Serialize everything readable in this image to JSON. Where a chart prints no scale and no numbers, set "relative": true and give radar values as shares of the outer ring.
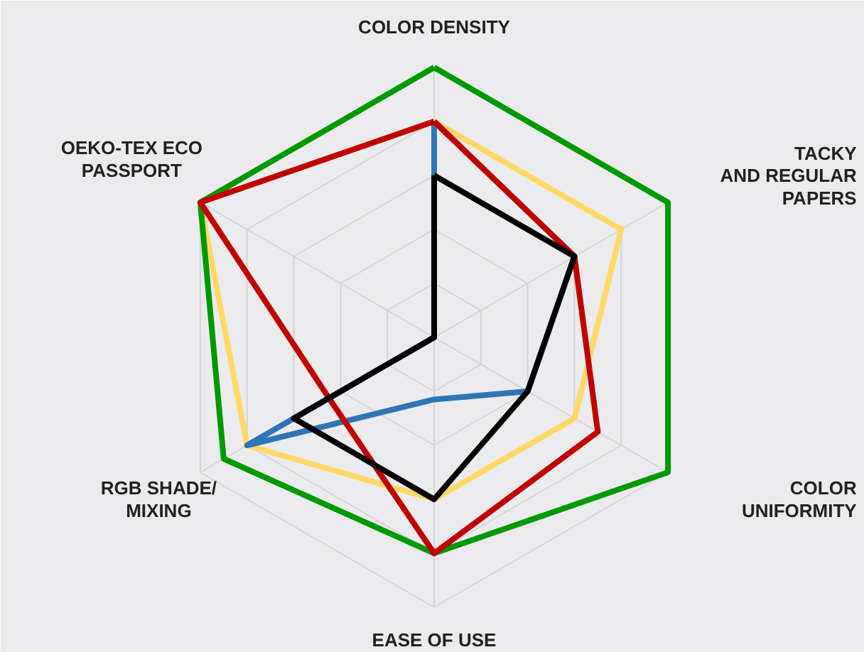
{
  "chart_data": {
    "type": "radar",
    "relative": true,
    "grid": true,
    "categories": [
      "COLOR DENSITY",
      "TACKY\nAND REGULAR\nPAPERS",
      "COLOR\nUNIFORMITY",
      "EASE OF USE",
      "RGB SHADE/\nMIXING",
      "OEKO-TEX ECO\nPASSPORT"
    ],
    "series": [
      {
        "color": "#ffd966",
        "values": [
          0.8,
          0.8,
          0.6,
          0.6,
          0.8,
          1.0
        ]
      },
      {
        "color": "#2e75b6",
        "values": [
          0.8,
          0.6,
          0.4,
          0.23,
          0.8,
          0
        ]
      },
      {
        "color": "#009900",
        "values": [
          1.0,
          1.0,
          1.0,
          0.8,
          0.9,
          1.0
        ]
      },
      {
        "color": "#c00000",
        "values": [
          0.8,
          0.6,
          0.7,
          0.8,
          0.45,
          1.0
        ]
      },
      {
        "color": "#000000",
        "values": [
          0.6,
          0.6,
          0.4,
          0.6,
          0.6,
          0
        ]
      }
    ]
  }
}
